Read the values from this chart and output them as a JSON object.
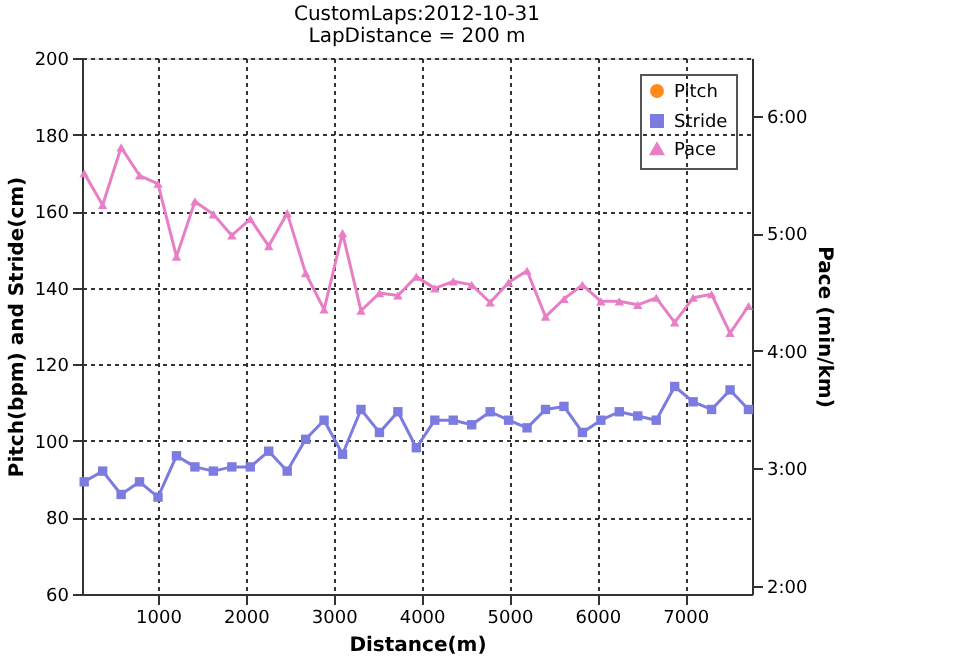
{
  "chart_data": {
    "type": "line",
    "title": "CustomLaps:2012-10-31",
    "subtitle": "LapDistance = 200 m",
    "xlabel": "Distance(m)",
    "ylabel": "Pitch(bpm) and Stride(cm)",
    "y2label": "Pace (min/km)",
    "x": [
      160,
      370,
      580,
      790,
      1000,
      1210,
      1420,
      1630,
      1840,
      2050,
      2260,
      2470,
      2680,
      2890,
      3100,
      3310,
      3520,
      3730,
      3940,
      4150,
      4360,
      4570,
      4780,
      4990,
      5200,
      5410,
      5620,
      5830,
      6040,
      6250,
      6460,
      6670,
      6880,
      7090,
      7300,
      7510,
      7720
    ],
    "xlim": [
      135,
      7760
    ],
    "xticks": [
      1000,
      2000,
      3000,
      4000,
      5000,
      6000,
      7000
    ],
    "ylim": [
      60,
      200
    ],
    "yticks": [
      60,
      80,
      100,
      120,
      140,
      160,
      180,
      200
    ],
    "y2lim": [
      1.93,
      6.49
    ],
    "y2ticks": [
      {
        "value": 2,
        "label": "2:00"
      },
      {
        "value": 3,
        "label": "3:00"
      },
      {
        "value": 4,
        "label": "4:00"
      },
      {
        "value": 5,
        "label": "5:00"
      },
      {
        "value": 6,
        "label": "6:00"
      }
    ],
    "series": [
      {
        "name": "Pitch",
        "color": "#ff8c1a",
        "marker": "circle",
        "values": [
          null,
          null,
          null,
          null,
          null,
          null,
          null,
          null,
          null,
          null,
          null,
          null,
          null,
          null,
          null,
          null,
          null,
          null,
          null,
          null,
          null,
          null,
          null,
          null,
          null,
          null,
          null,
          null,
          null,
          null,
          null,
          null,
          null,
          null,
          null,
          null,
          null
        ]
      },
      {
        "name": "Stride",
        "color": "#7b7be0",
        "marker": "square",
        "values": [
          89.3,
          92.1,
          86,
          89.3,
          85.3,
          96.1,
          93.2,
          92.1,
          93.2,
          93.2,
          97.3,
          92.1,
          100.4,
          105.4,
          96.5,
          108.2,
          102.2,
          107.6,
          98.2,
          105.4,
          105.4,
          104.2,
          107.6,
          105.4,
          103.4,
          108.2,
          109,
          102.2,
          105.4,
          107.6,
          106.5,
          105.4,
          114.2,
          110.2,
          108.2,
          113.3,
          108.2
        ]
      },
      {
        "name": "Pace",
        "color": "#e87fc6",
        "marker": "triangle",
        "axis": "y2",
        "values": [
          5.51,
          5.24,
          5.73,
          5.49,
          5.42,
          4.8,
          5.27,
          5.16,
          4.98,
          5.12,
          4.89,
          5.17,
          4.66,
          4.35,
          5.0,
          4.34,
          4.49,
          4.47,
          4.63,
          4.53,
          4.59,
          4.56,
          4.41,
          4.58,
          4.68,
          4.29,
          4.44,
          4.56,
          4.42,
          4.42,
          4.39,
          4.45,
          4.24,
          4.45,
          4.48,
          4.15,
          4.38
        ]
      }
    ],
    "grid": true,
    "legend": "top right",
    "line_style": "solid"
  }
}
